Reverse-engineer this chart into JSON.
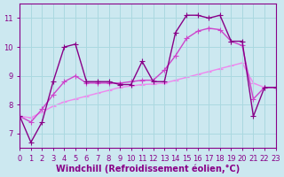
{
  "xlabel": "Windchill (Refroidissement éolien,°C)",
  "ylabel": "",
  "bg_color": "#cce8f0",
  "line_color1": "#880088",
  "line_color2": "#cc44cc",
  "line_color3": "#ee88ee",
  "xlim": [
    0,
    23
  ],
  "ylim": [
    6.5,
    11.5
  ],
  "yticks": [
    7,
    8,
    9,
    10,
    11
  ],
  "xticks": [
    0,
    1,
    2,
    3,
    4,
    5,
    6,
    7,
    8,
    9,
    10,
    11,
    12,
    13,
    14,
    15,
    16,
    17,
    18,
    19,
    20,
    21,
    22,
    23
  ],
  "s1_x": [
    0,
    1,
    2,
    3,
    4,
    5,
    6,
    7,
    8,
    9,
    10,
    11,
    12,
    13,
    14,
    15,
    16,
    17,
    18,
    19,
    20,
    21,
    22,
    23
  ],
  "s1_y": [
    7.6,
    6.7,
    7.4,
    8.8,
    10.0,
    10.1,
    8.8,
    8.8,
    8.8,
    8.7,
    8.7,
    9.5,
    8.8,
    8.8,
    10.5,
    11.1,
    11.1,
    11.0,
    11.1,
    10.2,
    10.2,
    7.6,
    8.6,
    8.6
  ],
  "s2_x": [
    0,
    1,
    2,
    3,
    4,
    5,
    6,
    7,
    8,
    9,
    10,
    11,
    12,
    13,
    14,
    15,
    16,
    17,
    18,
    19,
    20,
    21,
    22,
    23
  ],
  "s2_y": [
    7.6,
    7.4,
    7.85,
    8.35,
    8.8,
    9.0,
    8.75,
    8.75,
    8.75,
    8.75,
    8.8,
    8.85,
    8.85,
    9.2,
    9.7,
    10.3,
    10.55,
    10.65,
    10.6,
    10.2,
    10.05,
    8.2,
    8.6,
    8.6
  ],
  "s3_x": [
    0,
    1,
    2,
    3,
    4,
    5,
    6,
    7,
    8,
    9,
    10,
    11,
    12,
    13,
    14,
    15,
    16,
    17,
    18,
    19,
    20,
    21,
    22,
    23
  ],
  "s3_y": [
    7.6,
    7.55,
    7.75,
    7.95,
    8.1,
    8.2,
    8.3,
    8.4,
    8.5,
    8.6,
    8.65,
    8.7,
    8.72,
    8.75,
    8.85,
    8.95,
    9.05,
    9.15,
    9.25,
    9.35,
    9.45,
    8.75,
    8.6,
    8.6
  ],
  "marker": "+",
  "markersize": 4,
  "linewidth": 1.0,
  "tick_fontsize": 6,
  "label_fontsize": 7,
  "grid_color": "#aad8e0",
  "spine_color": "#880088",
  "tick_color": "#880088"
}
